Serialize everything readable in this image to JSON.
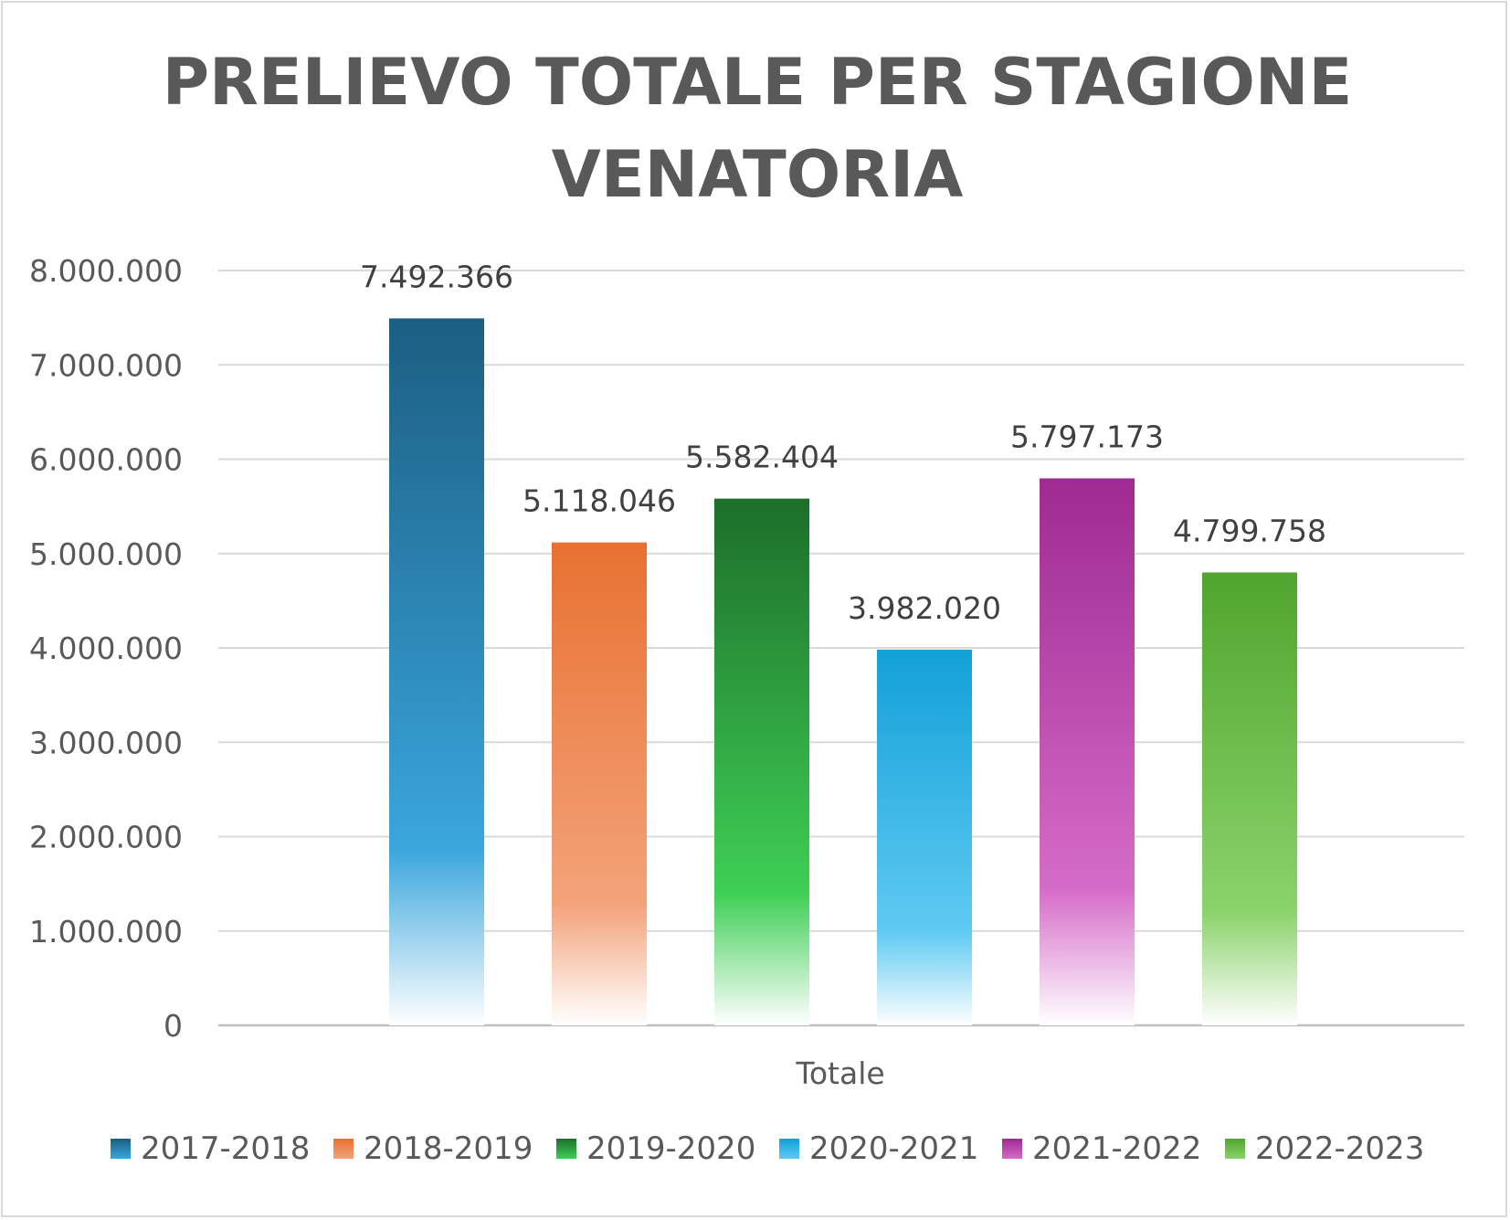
{
  "chart_data": {
    "type": "bar",
    "title_lines": [
      "PRELIEVO TOTALE PER STAGIONE",
      "VENATORIA"
    ],
    "categories": [
      "Totale"
    ],
    "series": [
      {
        "name": "2017-2018",
        "values": [
          7492366
        ],
        "label": "7.492.366",
        "color": "#1b5e82",
        "fade_color": "#3aa6dd"
      },
      {
        "name": "2018-2019",
        "values": [
          5118046
        ],
        "label": "5.118.046",
        "color": "#e87131",
        "fade_color": "#f3a37a"
      },
      {
        "name": "2019-2020",
        "values": [
          5582404
        ],
        "label": "5.582.404",
        "color": "#1c6e2a",
        "fade_color": "#3fcf55"
      },
      {
        "name": "2020-2021",
        "values": [
          3982020
        ],
        "label": "3.982.020",
        "color": "#12a0d8",
        "fade_color": "#5fcaf2"
      },
      {
        "name": "2021-2022",
        "values": [
          5797173
        ],
        "label": "5.797.173",
        "color": "#9e2a92",
        "fade_color": "#d56bc8"
      },
      {
        "name": "2022-2023",
        "values": [
          4799758
        ],
        "label": "4.799.758",
        "color": "#4fa52d",
        "fade_color": "#8bd36b"
      }
    ],
    "ylim": [
      0,
      8000000
    ],
    "yticks": [
      0,
      1000000,
      2000000,
      3000000,
      4000000,
      5000000,
      6000000,
      7000000,
      8000000
    ],
    "ytick_labels": [
      "0",
      "1.000.000",
      "2.000.000",
      "3.000.000",
      "4.000.000",
      "5.000.000",
      "6.000.000",
      "7.000.000",
      "8.000.000"
    ],
    "xlabel": "Totale",
    "ylabel": "",
    "grid": true,
    "legend_position": "bottom"
  }
}
